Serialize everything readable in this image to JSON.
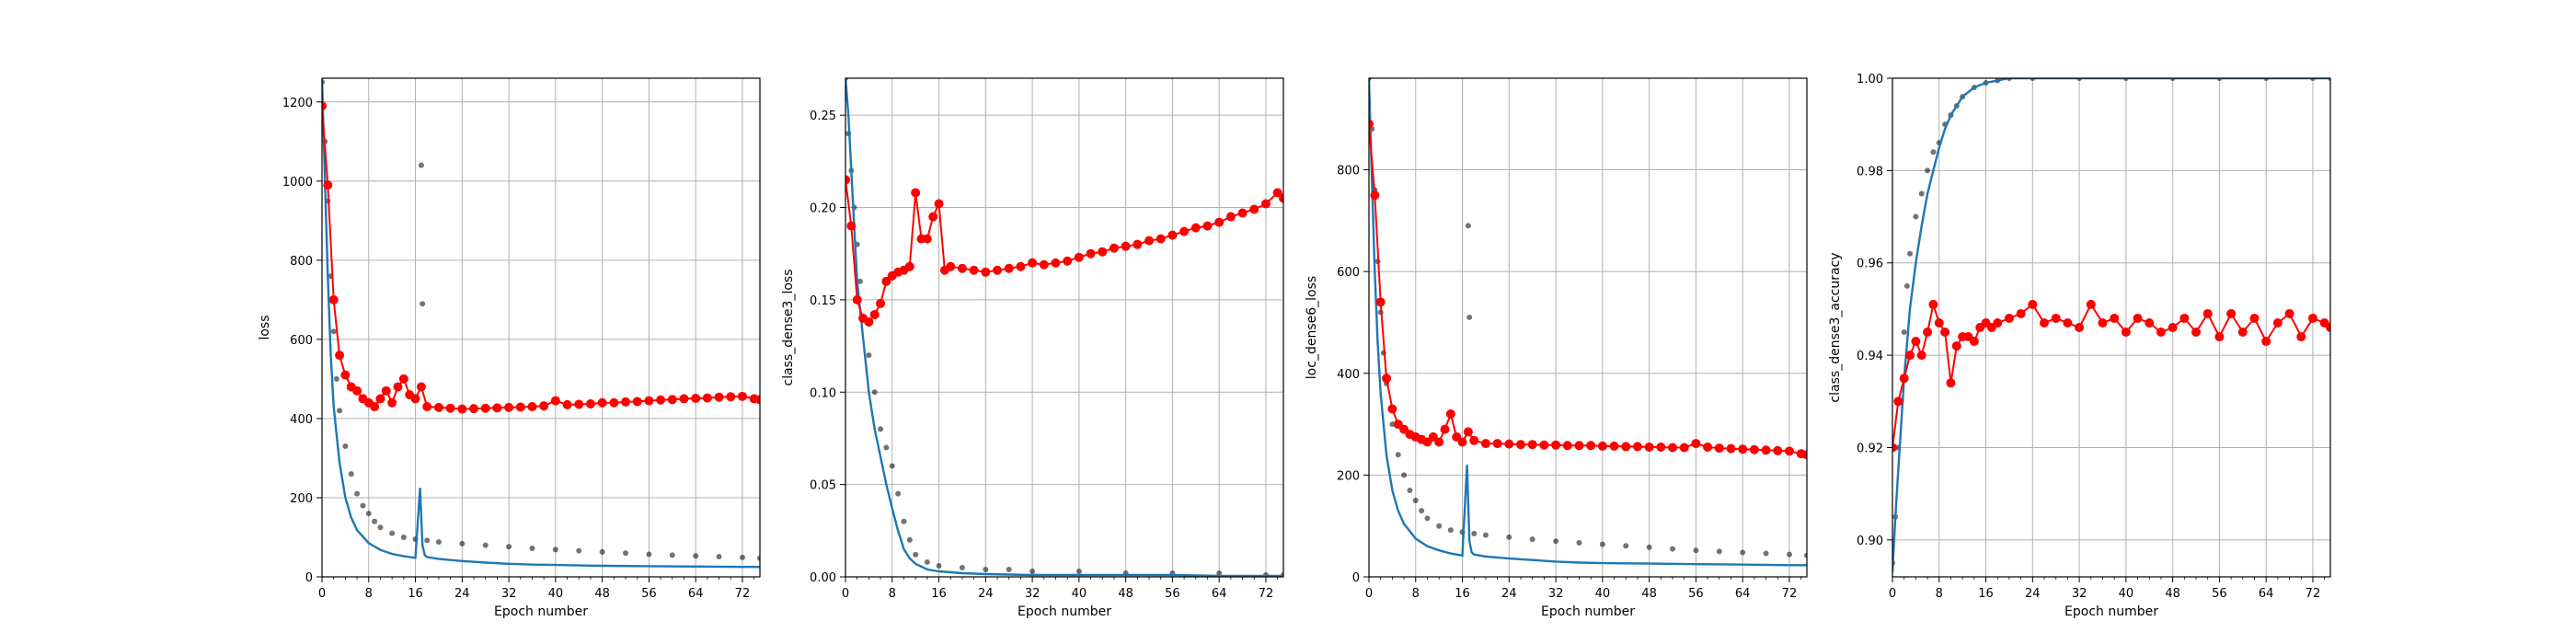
{
  "figure": {
    "colors": {
      "batch_points": "#000000",
      "smoothed_line": "#1f77b4",
      "validation": "#ff0000",
      "grid": "#b0b0b0"
    }
  },
  "chart_data": [
    {
      "type": "line",
      "xlabel": "Epoch number",
      "ylabel": "loss",
      "xlim": [
        0,
        75
      ],
      "ylim": [
        0,
        1260
      ],
      "xticks": [
        0,
        8,
        16,
        24,
        32,
        40,
        48,
        56,
        64,
        72
      ],
      "yticks": [
        0,
        200,
        400,
        600,
        800,
        1000,
        1200
      ],
      "grid": true,
      "series": [
        {
          "style": "scatter",
          "x": [
            0,
            0.5,
            1,
            1.5,
            2,
            2.5,
            3,
            4,
            5,
            6,
            7,
            8,
            9,
            10,
            12,
            14,
            16,
            17,
            17.2,
            18,
            20,
            24,
            28,
            32,
            36,
            40,
            44,
            48,
            52,
            56,
            60,
            64,
            68,
            72,
            75
          ],
          "y": [
            1250,
            1100,
            950,
            760,
            620,
            500,
            420,
            330,
            260,
            210,
            180,
            160,
            140,
            125,
            110,
            100,
            95,
            1040,
            690,
            92,
            88,
            84,
            80,
            76,
            72,
            69,
            66,
            63,
            60,
            57,
            55,
            53,
            51,
            49,
            47
          ]
        },
        {
          "style": "line",
          "x": [
            0,
            0.5,
            1,
            1.5,
            2,
            3,
            4,
            5,
            6,
            8,
            10,
            12,
            14,
            16,
            16.8,
            17.2,
            17.6,
            18,
            20,
            24,
            28,
            32,
            36,
            40,
            48,
            56,
            64,
            72,
            75
          ],
          "y": [
            1260,
            1000,
            760,
            560,
            430,
            290,
            200,
            150,
            118,
            85,
            68,
            58,
            52,
            48,
            225,
            80,
            55,
            50,
            45,
            40,
            36,
            33,
            31,
            30,
            28,
            27,
            26,
            25,
            25
          ]
        },
        {
          "style": "line-marker",
          "x": [
            0,
            1,
            2,
            3,
            4,
            5,
            6,
            7,
            8,
            9,
            10,
            11,
            12,
            13,
            14,
            15,
            16,
            17,
            18,
            20,
            22,
            24,
            26,
            28,
            30,
            32,
            34,
            36,
            38,
            40,
            42,
            44,
            46,
            48,
            50,
            52,
            54,
            56,
            58,
            60,
            62,
            64,
            66,
            68,
            70,
            72,
            74,
            75
          ],
          "y": [
            1190,
            990,
            700,
            560,
            510,
            480,
            470,
            450,
            440,
            430,
            450,
            470,
            440,
            480,
            500,
            460,
            450,
            480,
            430,
            428,
            426,
            424,
            425,
            426,
            427,
            428,
            429,
            430,
            432,
            445,
            435,
            436,
            437,
            440,
            440,
            442,
            443,
            445,
            447,
            448,
            450,
            451,
            452,
            454,
            455,
            456,
            450,
            448
          ]
        }
      ]
    },
    {
      "type": "line",
      "xlabel": "Epoch number",
      "ylabel": "class_dense3_loss",
      "xlim": [
        0,
        75
      ],
      "ylim": [
        0,
        0.27
      ],
      "xticks": [
        0,
        8,
        16,
        24,
        32,
        40,
        48,
        56,
        64,
        72
      ],
      "yticks": [
        0.0,
        0.05,
        0.1,
        0.15,
        0.2,
        0.25
      ],
      "ytick_labels": [
        "0.00",
        "0.05",
        "0.10",
        "0.15",
        "0.20",
        "0.25"
      ],
      "grid": true,
      "series": [
        {
          "style": "scatter",
          "x": [
            0,
            0.5,
            1,
            1.5,
            2,
            2.5,
            3,
            4,
            5,
            6,
            7,
            8,
            9,
            10,
            11,
            12,
            14,
            16,
            20,
            24,
            28,
            32,
            40,
            48,
            56,
            64,
            72,
            75
          ],
          "y": [
            0.27,
            0.24,
            0.22,
            0.2,
            0.18,
            0.16,
            0.14,
            0.12,
            0.1,
            0.08,
            0.07,
            0.06,
            0.045,
            0.03,
            0.02,
            0.012,
            0.008,
            0.006,
            0.005,
            0.004,
            0.004,
            0.003,
            0.003,
            0.002,
            0.002,
            0.002,
            0.001,
            0.001
          ]
        },
        {
          "style": "line",
          "x": [
            0,
            0.5,
            1,
            1.5,
            2,
            3,
            4,
            5,
            6,
            7,
            8,
            9,
            10,
            11,
            12,
            14,
            16,
            20,
            24,
            32,
            40,
            48,
            56,
            64,
            72,
            75
          ],
          "y": [
            0.27,
            0.25,
            0.22,
            0.19,
            0.16,
            0.13,
            0.1,
            0.08,
            0.065,
            0.05,
            0.037,
            0.025,
            0.015,
            0.01,
            0.007,
            0.004,
            0.003,
            0.002,
            0.0015,
            0.001,
            0.001,
            0.001,
            0.001,
            0.0005,
            0.0005,
            0.0005
          ]
        },
        {
          "style": "line-marker",
          "x": [
            0,
            1,
            2,
            3,
            4,
            5,
            6,
            7,
            8,
            9,
            10,
            11,
            12,
            13,
            14,
            15,
            16,
            17,
            18,
            20,
            22,
            24,
            26,
            28,
            30,
            32,
            34,
            36,
            38,
            40,
            42,
            44,
            46,
            48,
            50,
            52,
            54,
            56,
            58,
            60,
            62,
            64,
            66,
            68,
            70,
            72,
            74,
            75
          ],
          "y": [
            0.215,
            0.19,
            0.15,
            0.14,
            0.138,
            0.142,
            0.148,
            0.16,
            0.163,
            0.165,
            0.166,
            0.168,
            0.208,
            0.183,
            0.183,
            0.195,
            0.202,
            0.166,
            0.168,
            0.167,
            0.166,
            0.165,
            0.166,
            0.167,
            0.168,
            0.17,
            0.169,
            0.17,
            0.171,
            0.173,
            0.175,
            0.176,
            0.178,
            0.179,
            0.18,
            0.182,
            0.183,
            0.185,
            0.187,
            0.189,
            0.19,
            0.192,
            0.195,
            0.197,
            0.199,
            0.202,
            0.208,
            0.205
          ]
        }
      ]
    },
    {
      "type": "line",
      "xlabel": "Epoch number",
      "ylabel": "loc_dense6_loss",
      "xlim": [
        0,
        75
      ],
      "ylim": [
        0,
        980
      ],
      "xticks": [
        0,
        8,
        16,
        24,
        32,
        40,
        48,
        56,
        64,
        72
      ],
      "yticks": [
        0,
        200,
        400,
        600,
        800
      ],
      "grid": true,
      "series": [
        {
          "style": "scatter",
          "x": [
            0,
            0.5,
            1,
            1.5,
            2,
            2.5,
            3,
            4,
            5,
            6,
            7,
            8,
            9,
            10,
            12,
            14,
            16,
            17,
            17.2,
            18,
            20,
            24,
            28,
            32,
            36,
            40,
            44,
            48,
            52,
            56,
            60,
            64,
            68,
            72,
            75
          ],
          "y": [
            980,
            880,
            760,
            620,
            520,
            440,
            380,
            300,
            240,
            200,
            170,
            150,
            130,
            115,
            100,
            92,
            88,
            690,
            510,
            85,
            82,
            78,
            74,
            70,
            67,
            64,
            61,
            58,
            55,
            52,
            50,
            48,
            46,
            44,
            42
          ]
        },
        {
          "style": "line",
          "x": [
            0,
            0.5,
            1,
            1.5,
            2,
            3,
            4,
            5,
            6,
            8,
            10,
            12,
            14,
            16,
            16.8,
            17.2,
            17.6,
            18,
            20,
            24,
            28,
            32,
            36,
            40,
            48,
            56,
            64,
            72,
            75
          ],
          "y": [
            980,
            780,
            600,
            460,
            360,
            240,
            170,
            130,
            104,
            75,
            60,
            52,
            46,
            42,
            220,
            70,
            48,
            44,
            40,
            36,
            33,
            30,
            28,
            27,
            26,
            25,
            24,
            23,
            23
          ]
        },
        {
          "style": "line-marker",
          "x": [
            0,
            1,
            2,
            3,
            4,
            5,
            6,
            7,
            8,
            9,
            10,
            11,
            12,
            13,
            14,
            15,
            16,
            17,
            18,
            20,
            22,
            24,
            26,
            28,
            30,
            32,
            34,
            36,
            38,
            40,
            42,
            44,
            46,
            48,
            50,
            52,
            54,
            56,
            58,
            60,
            62,
            64,
            66,
            68,
            70,
            72,
            74,
            75
          ],
          "y": [
            890,
            750,
            540,
            390,
            330,
            300,
            290,
            280,
            275,
            270,
            265,
            275,
            265,
            290,
            320,
            275,
            265,
            285,
            268,
            262,
            262,
            261,
            260,
            260,
            259,
            259,
            258,
            258,
            258,
            257,
            257,
            256,
            256,
            255,
            255,
            254,
            254,
            262,
            255,
            253,
            252,
            251,
            250,
            249,
            248,
            247,
            242,
            240
          ]
        }
      ]
    },
    {
      "type": "line",
      "xlabel": "Epoch number",
      "ylabel": "class_dense3_accuracy",
      "xlim": [
        0,
        75
      ],
      "ylim": [
        0.892,
        1.0
      ],
      "xticks": [
        0,
        8,
        16,
        24,
        32,
        40,
        48,
        56,
        64,
        72
      ],
      "yticks": [
        0.9,
        0.92,
        0.94,
        0.96,
        0.98,
        1.0
      ],
      "ytick_labels": [
        "0.90",
        "0.92",
        "0.94",
        "0.96",
        "0.98",
        "1.00"
      ],
      "grid": true,
      "series": [
        {
          "style": "scatter",
          "x": [
            0,
            0.5,
            1,
            1.5,
            2,
            2.5,
            3,
            4,
            5,
            6,
            7,
            8,
            9,
            10,
            11,
            12,
            14,
            16,
            18,
            20,
            24,
            32,
            40,
            48,
            56,
            64,
            72,
            75
          ],
          "y": [
            0.895,
            0.905,
            0.92,
            0.93,
            0.945,
            0.955,
            0.962,
            0.97,
            0.975,
            0.98,
            0.984,
            0.986,
            0.99,
            0.992,
            0.994,
            0.996,
            0.998,
            0.999,
            0.9995,
            1.0,
            1.0,
            1.0,
            1.0,
            1.0,
            1.0,
            1.0,
            1.0,
            1.0
          ]
        },
        {
          "style": "line",
          "x": [
            0,
            0.5,
            1,
            1.5,
            2,
            3,
            4,
            5,
            6,
            7,
            8,
            9,
            10,
            12,
            14,
            16,
            18,
            20,
            24,
            32,
            40,
            48,
            56,
            64,
            72,
            75
          ],
          "y": [
            0.893,
            0.905,
            0.915,
            0.925,
            0.935,
            0.95,
            0.96,
            0.968,
            0.975,
            0.98,
            0.985,
            0.989,
            0.992,
            0.996,
            0.998,
            0.999,
            0.9995,
            1.0,
            1.0,
            1.0,
            1.0,
            1.0,
            1.0,
            1.0,
            1.0,
            1.0
          ]
        },
        {
          "style": "line-marker",
          "x": [
            0,
            1,
            2,
            3,
            4,
            5,
            6,
            7,
            8,
            9,
            10,
            11,
            12,
            13,
            14,
            15,
            16,
            17,
            18,
            20,
            22,
            24,
            26,
            28,
            30,
            32,
            34,
            36,
            38,
            40,
            42,
            44,
            46,
            48,
            50,
            52,
            54,
            56,
            58,
            60,
            62,
            64,
            66,
            68,
            70,
            72,
            74,
            75
          ],
          "y": [
            0.92,
            0.93,
            0.935,
            0.94,
            0.943,
            0.94,
            0.945,
            0.951,
            0.947,
            0.945,
            0.934,
            0.942,
            0.944,
            0.944,
            0.943,
            0.946,
            0.947,
            0.946,
            0.947,
            0.948,
            0.949,
            0.951,
            0.947,
            0.948,
            0.947,
            0.946,
            0.951,
            0.947,
            0.948,
            0.945,
            0.948,
            0.947,
            0.945,
            0.946,
            0.948,
            0.945,
            0.949,
            0.944,
            0.949,
            0.945,
            0.948,
            0.943,
            0.947,
            0.949,
            0.944,
            0.948,
            0.947,
            0.946
          ]
        }
      ]
    }
  ]
}
